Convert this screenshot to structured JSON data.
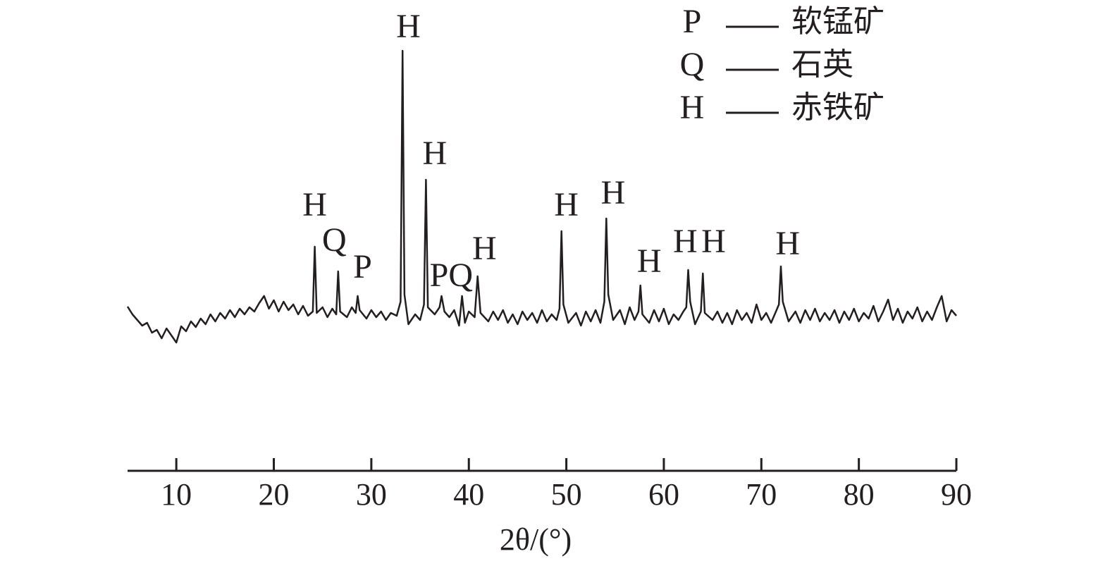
{
  "chart_data": {
    "type": "line",
    "xlabel": "2θ/(°)",
    "xlim": [
      5,
      90
    ],
    "ylim": [
      0,
      650
    ],
    "xticks": [
      10,
      20,
      30,
      40,
      50,
      60,
      70,
      80,
      90
    ],
    "color": "#231f20",
    "x": [
      5,
      5.5,
      6,
      6.5,
      7,
      7.5,
      8,
      8.5,
      9,
      9.5,
      10,
      10.5,
      11,
      11.5,
      12,
      12.5,
      13,
      13.5,
      14,
      14.5,
      15,
      15.5,
      16,
      16.5,
      17,
      17.5,
      18,
      18.5,
      19,
      19.5,
      20,
      20.5,
      21,
      21.5,
      22,
      22.5,
      23,
      23.5,
      24,
      24.2,
      24.4,
      25,
      25.5,
      26,
      26.4,
      26.6,
      26.8,
      27.5,
      28,
      28.4,
      28.6,
      28.8,
      29.5,
      30,
      30.5,
      31,
      31.5,
      32,
      32.6,
      33,
      33.2,
      33.4,
      33.8,
      34.5,
      35,
      35.4,
      35.6,
      35.8,
      36.5,
      37,
      37.2,
      37.5,
      38,
      38.5,
      39,
      39.3,
      39.6,
      40,
      40.6,
      40.9,
      41.2,
      42,
      42.5,
      43,
      43.5,
      44,
      44.5,
      45,
      45.5,
      46,
      46.5,
      47,
      47.5,
      48,
      48.5,
      49,
      49.3,
      49.5,
      49.7,
      50.2,
      51,
      51.5,
      52,
      52.5,
      53,
      53.5,
      53.9,
      54.1,
      54.3,
      54.8,
      55.5,
      56,
      56.5,
      57,
      57.4,
      57.6,
      57.8,
      58.5,
      59,
      59.5,
      60,
      60.5,
      61,
      61.5,
      62,
      62.3,
      62.5,
      62.7,
      63.2,
      63.8,
      64,
      64.2,
      65,
      65.5,
      66,
      66.5,
      67,
      67.5,
      68,
      68.5,
      69,
      69.5,
      70,
      70.5,
      71,
      71.5,
      71.8,
      72,
      72.2,
      72.8,
      73.5,
      74,
      74.5,
      75,
      75.5,
      76,
      76.5,
      77,
      77.5,
      78,
      78.5,
      79,
      79.5,
      80,
      80.5,
      81,
      81.5,
      82,
      82.5,
      83,
      83.5,
      84,
      84.5,
      85,
      85.5,
      86,
      86.5,
      87,
      87.5,
      88,
      88.5,
      89,
      89.5,
      90
    ],
    "values": [
      233,
      222,
      214,
      206,
      210,
      196,
      200,
      188,
      202,
      192,
      182,
      205,
      198,
      212,
      204,
      216,
      208,
      222,
      212,
      224,
      216,
      228,
      218,
      230,
      222,
      232,
      226,
      238,
      248,
      230,
      242,
      226,
      240,
      228,
      236,
      222,
      234,
      220,
      226,
      318,
      224,
      232,
      218,
      230,
      222,
      283,
      226,
      218,
      232,
      224,
      248,
      228,
      216,
      228,
      218,
      226,
      214,
      224,
      220,
      240,
      596,
      250,
      208,
      222,
      214,
      236,
      413,
      232,
      222,
      232,
      248,
      226,
      218,
      228,
      206,
      248,
      210,
      226,
      218,
      276,
      224,
      212,
      226,
      214,
      228,
      210,
      222,
      208,
      226,
      214,
      224,
      210,
      228,
      212,
      222,
      214,
      230,
      340,
      236,
      210,
      224,
      206,
      226,
      212,
      228,
      210,
      240,
      358,
      250,
      214,
      228,
      208,
      232,
      214,
      226,
      263,
      222,
      210,
      228,
      212,
      230,
      208,
      222,
      214,
      226,
      232,
      285,
      240,
      208,
      226,
      280,
      224,
      214,
      226,
      210,
      224,
      208,
      228,
      214,
      224,
      210,
      236,
      214,
      224,
      210,
      226,
      236,
      290,
      240,
      212,
      226,
      210,
      228,
      214,
      230,
      212,
      224,
      214,
      228,
      210,
      226,
      214,
      230,
      212,
      224,
      216,
      234,
      212,
      226,
      243,
      214,
      230,
      210,
      226,
      216,
      232,
      212,
      226,
      214,
      232,
      248,
      212,
      228,
      220
    ],
    "annotations": [
      {
        "text": "H",
        "x": 24.2,
        "y": 373
      },
      {
        "text": "Q",
        "x": 26.2,
        "y": 323
      },
      {
        "text": "P",
        "x": 29.1,
        "y": 285
      },
      {
        "text": "H",
        "x": 33.8,
        "y": 626
      },
      {
        "text": "H",
        "x": 36.5,
        "y": 446
      },
      {
        "text": "PQ",
        "x": 38.2,
        "y": 273
      },
      {
        "text": "H",
        "x": 41.6,
        "y": 311
      },
      {
        "text": "H",
        "x": 50.0,
        "y": 373
      },
      {
        "text": "H",
        "x": 54.8,
        "y": 390
      },
      {
        "text": "H",
        "x": 58.5,
        "y": 293
      },
      {
        "text": "H",
        "x": 62.2,
        "y": 321
      },
      {
        "text": "H",
        "x": 65.1,
        "y": 321
      },
      {
        "text": "H",
        "x": 72.7,
        "y": 318
      }
    ],
    "legend": [
      {
        "symbol": "P",
        "name": "软锰矿"
      },
      {
        "symbol": "Q",
        "name": "石英"
      },
      {
        "symbol": "H",
        "name": "赤铁矿"
      }
    ]
  }
}
